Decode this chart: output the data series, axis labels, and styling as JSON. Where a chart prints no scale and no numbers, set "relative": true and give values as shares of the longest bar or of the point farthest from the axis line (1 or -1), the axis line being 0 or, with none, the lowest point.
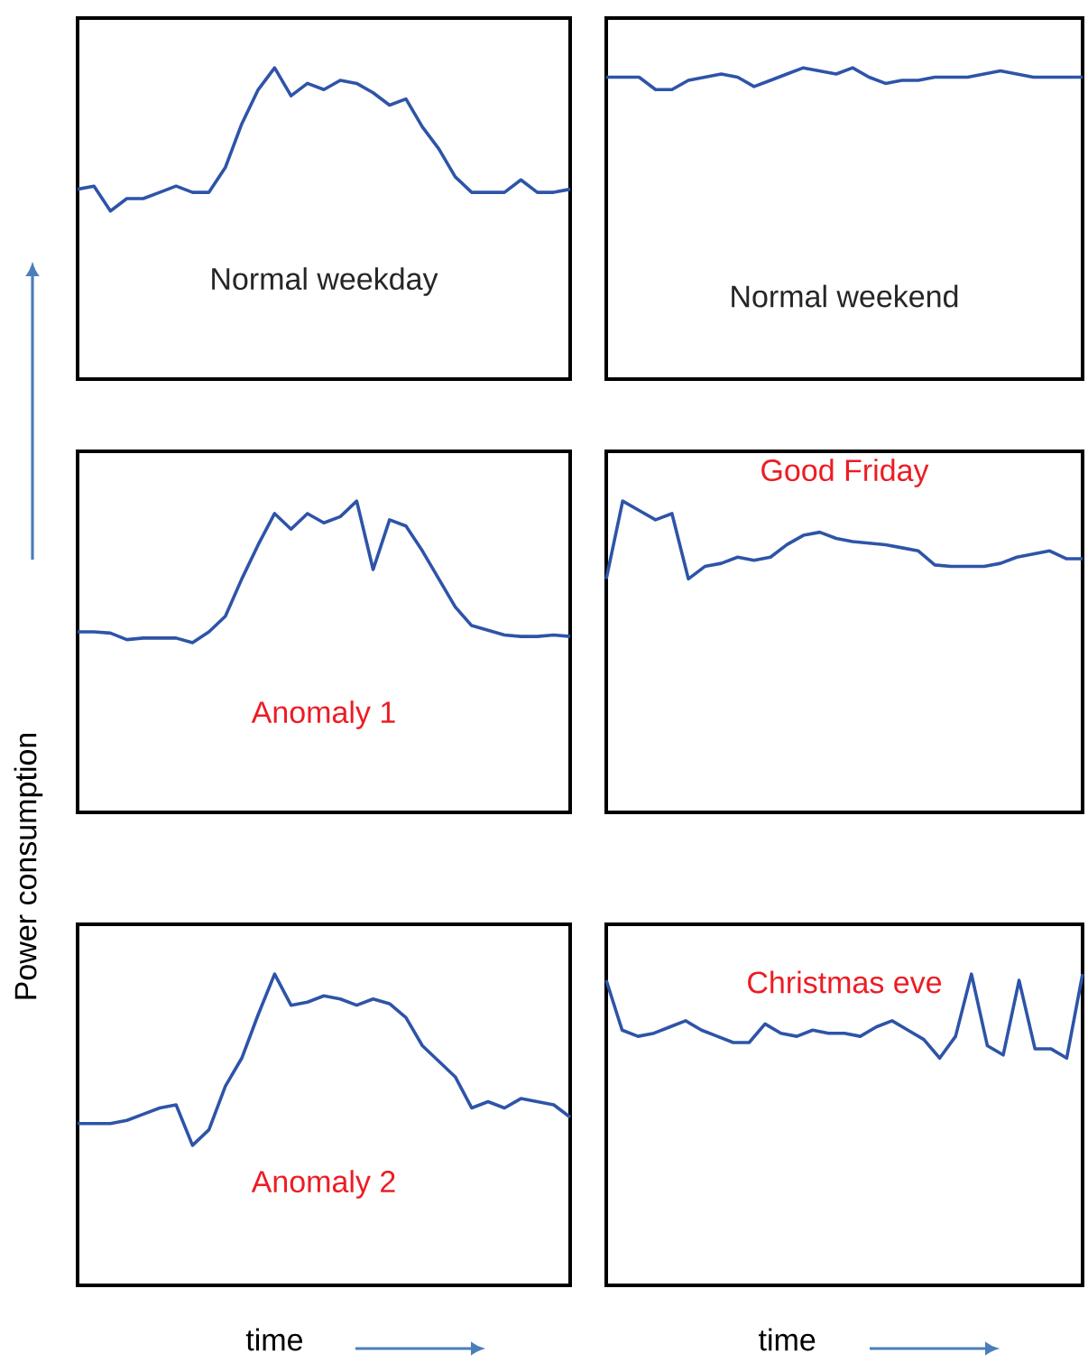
{
  "chart_data": [
    {
      "type": "line",
      "relative": true,
      "annotations": [
        "Normal weekday"
      ],
      "categories": [
        null,
        null,
        null,
        null,
        null,
        null,
        null,
        null,
        null,
        null,
        null,
        null,
        null,
        null,
        null,
        null,
        null,
        null,
        null,
        null,
        null,
        null,
        null,
        null,
        null,
        null,
        null,
        null,
        null,
        null,
        null
      ],
      "series": [
        {
          "color": "#2e54a8",
          "values": [
            0.61,
            0.62,
            0.54,
            0.58,
            0.58,
            0.6,
            0.62,
            0.6,
            0.6,
            0.68,
            0.82,
            0.93,
            1.0,
            0.91,
            0.95,
            0.93,
            0.96,
            0.95,
            0.92,
            0.88,
            0.9,
            0.81,
            0.74,
            0.65,
            0.6,
            0.6,
            0.6,
            0.64,
            0.6,
            0.6,
            0.61
          ]
        }
      ]
    },
    {
      "type": "line",
      "relative": true,
      "annotations": [
        "Normal weekend"
      ],
      "categories": [
        null,
        null,
        null,
        null,
        null,
        null,
        null,
        null,
        null,
        null,
        null,
        null,
        null,
        null,
        null,
        null,
        null,
        null,
        null,
        null,
        null,
        null,
        null,
        null,
        null,
        null,
        null,
        null,
        null,
        null
      ],
      "series": [
        {
          "color": "#2e54a8",
          "values": [
            0.97,
            0.97,
            0.97,
            0.93,
            0.93,
            0.96,
            0.97,
            0.98,
            0.97,
            0.94,
            0.96,
            0.98,
            1.0,
            0.99,
            0.98,
            1.0,
            0.97,
            0.95,
            0.96,
            0.96,
            0.97,
            0.97,
            0.97,
            0.98,
            0.99,
            0.98,
            0.97,
            0.97,
            0.97,
            0.97
          ]
        }
      ]
    },
    {
      "type": "line",
      "relative": true,
      "ylabel": "Power consumption",
      "annotations": [
        "Anomaly 1"
      ],
      "categories": [
        null,
        null,
        null,
        null,
        null,
        null,
        null,
        null,
        null,
        null,
        null,
        null,
        null,
        null,
        null,
        null,
        null,
        null,
        null,
        null,
        null,
        null,
        null,
        null,
        null,
        null,
        null,
        null,
        null,
        null,
        null
      ],
      "series": [
        {
          "color": "#2e54a8",
          "values": [
            0.58,
            0.58,
            0.576,
            0.555,
            0.56,
            0.56,
            0.56,
            0.545,
            0.58,
            0.63,
            0.75,
            0.86,
            0.96,
            0.91,
            0.96,
            0.93,
            0.95,
            1.0,
            0.78,
            0.94,
            0.92,
            0.84,
            0.75,
            0.66,
            0.6,
            0.585,
            0.57,
            0.565,
            0.565,
            0.57,
            0.565
          ]
        }
      ]
    },
    {
      "type": "line",
      "relative": true,
      "annotations": [
        "Good Friday"
      ],
      "categories": [
        null,
        null,
        null,
        null,
        null,
        null,
        null,
        null,
        null,
        null,
        null,
        null,
        null,
        null,
        null,
        null,
        null,
        null,
        null,
        null,
        null,
        null,
        null,
        null,
        null,
        null,
        null,
        null,
        null,
        null
      ],
      "series": [
        {
          "color": "#2e54a8",
          "values": [
            0.75,
            1.0,
            0.97,
            0.94,
            0.96,
            0.75,
            0.79,
            0.8,
            0.82,
            0.81,
            0.82,
            0.86,
            0.89,
            0.9,
            0.88,
            0.87,
            0.865,
            0.86,
            0.85,
            0.84,
            0.795,
            0.79,
            0.79,
            0.79,
            0.8,
            0.82,
            0.83,
            0.84,
            0.815,
            0.815
          ]
        }
      ]
    },
    {
      "type": "line",
      "relative": true,
      "xlabel": "time",
      "annotations": [
        "Anomaly 2"
      ],
      "categories": [
        null,
        null,
        null,
        null,
        null,
        null,
        null,
        null,
        null,
        null,
        null,
        null,
        null,
        null,
        null,
        null,
        null,
        null,
        null,
        null,
        null,
        null,
        null,
        null,
        null,
        null,
        null,
        null,
        null,
        null,
        null
      ],
      "series": [
        {
          "color": "#2e54a8",
          "values": [
            0.52,
            0.52,
            0.52,
            0.53,
            0.55,
            0.57,
            0.58,
            0.45,
            0.5,
            0.64,
            0.73,
            0.87,
            1.0,
            0.9,
            0.91,
            0.93,
            0.92,
            0.9,
            0.92,
            0.905,
            0.86,
            0.77,
            0.72,
            0.67,
            0.57,
            0.59,
            0.57,
            0.6,
            0.59,
            0.58,
            0.54
          ]
        }
      ]
    },
    {
      "type": "line",
      "relative": true,
      "xlabel": "time",
      "annotations": [
        "Christmas eve"
      ],
      "categories": [
        null,
        null,
        null,
        null,
        null,
        null,
        null,
        null,
        null,
        null,
        null,
        null,
        null,
        null,
        null,
        null,
        null,
        null,
        null,
        null,
        null,
        null,
        null,
        null,
        null,
        null,
        null,
        null,
        null,
        null,
        null
      ],
      "series": [
        {
          "color": "#2e54a8",
          "values": [
            0.98,
            0.82,
            0.8,
            0.81,
            0.83,
            0.85,
            0.82,
            0.8,
            0.78,
            0.78,
            0.84,
            0.81,
            0.8,
            0.82,
            0.81,
            0.81,
            0.8,
            0.83,
            0.85,
            0.82,
            0.79,
            0.73,
            0.8,
            1.0,
            0.77,
            0.74,
            0.98,
            0.76,
            0.76,
            0.73,
            1.0
          ]
        }
      ]
    }
  ]
}
